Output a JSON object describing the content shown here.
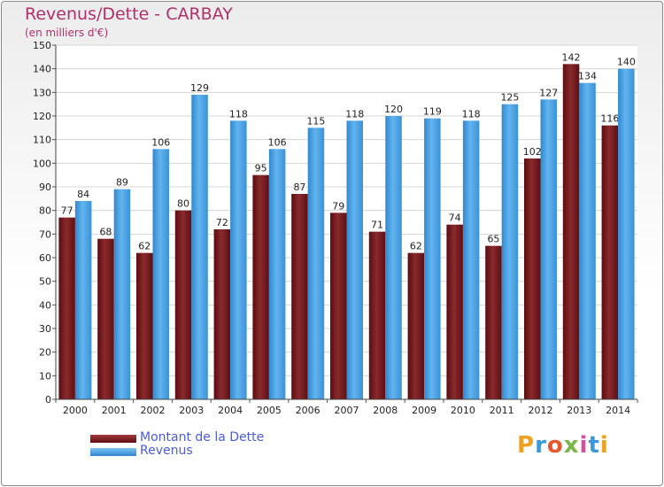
{
  "title": "Revenus/Dette - CARBAY",
  "subtitle": "(en milliers d'€)",
  "colors": {
    "title": "#b0306a",
    "legend_text": "#4a5be0",
    "debt_bar": "#7d1f22",
    "revenue_bar": "#4aa3e6"
  },
  "legend": [
    {
      "label": "Montant de la Dette",
      "color": "#7d1f22"
    },
    {
      "label": "Revenus",
      "color": "#4aa3e6"
    }
  ],
  "logo": {
    "text": "Proxiti"
  },
  "chart_data": {
    "type": "bar",
    "categories": [
      "2000",
      "2001",
      "2002",
      "2003",
      "2004",
      "2005",
      "2006",
      "2007",
      "2008",
      "2009",
      "2010",
      "2011",
      "2012",
      "2013",
      "2014"
    ],
    "series": [
      {
        "name": "Montant de la Dette",
        "color": "#7d1f22",
        "values": [
          77,
          68,
          62,
          80,
          72,
          95,
          87,
          79,
          71,
          62,
          74,
          65,
          102,
          142,
          116
        ]
      },
      {
        "name": "Revenus",
        "color": "#4aa3e6",
        "values": [
          84,
          89,
          106,
          129,
          118,
          106,
          115,
          118,
          120,
          119,
          118,
          125,
          127,
          134,
          140
        ]
      }
    ],
    "ylim": [
      0,
      150
    ],
    "yticks": [
      0,
      10,
      20,
      30,
      40,
      50,
      60,
      70,
      80,
      90,
      100,
      110,
      120,
      130,
      140,
      150
    ],
    "grid": true
  }
}
